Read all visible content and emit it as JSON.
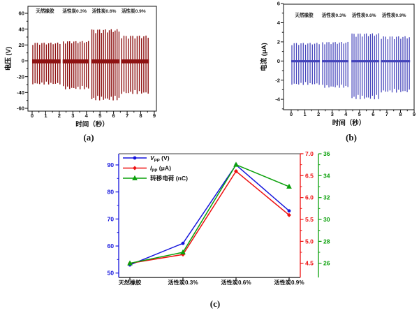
{
  "figure": {
    "background": "#ffffff",
    "captions": {
      "a": "(a)",
      "b": "(b)",
      "c": "(c)"
    }
  },
  "chart_data": [
    {
      "id": "a",
      "type": "line",
      "subtype": "spike-train",
      "title": "",
      "xlabel": "时间（秒）",
      "ylabel": "电压 (V)",
      "xlim": [
        -0.3,
        9.2
      ],
      "ylim": [
        -64,
        69
      ],
      "xticks": [
        0,
        1,
        2,
        3,
        4,
        5,
        6,
        7,
        8,
        9
      ],
      "yticks": [
        -60,
        -40,
        -20,
        0,
        20,
        40,
        60
      ],
      "y_minor": [
        -50,
        -30,
        -10,
        10,
        30,
        50
      ],
      "grid": false,
      "color": "#8e1212",
      "annotations": [
        "天然橡胶",
        "活性炭0.3%",
        "活性炭0.6%",
        "活性炭0.9%"
      ],
      "groups": [
        {
          "label": "天然橡胶",
          "t_start": 0.05,
          "t_end": 2.05,
          "spikes": 13,
          "peak_pos": 23,
          "peak_neg": -30
        },
        {
          "label": "活性炭0.3%",
          "t_start": 2.3,
          "t_end": 4.15,
          "spikes": 13,
          "peak_pos": 25,
          "peak_neg": -36
        },
        {
          "label": "活性炭0.6%",
          "t_start": 4.4,
          "t_end": 6.4,
          "spikes": 15,
          "peak_pos": 40,
          "peak_neg": -50
        },
        {
          "label": "活性炭0.9%",
          "t_start": 6.6,
          "t_end": 8.55,
          "spikes": 13,
          "peak_pos": 32,
          "peak_neg": -42
        }
      ]
    },
    {
      "id": "b",
      "type": "line",
      "subtype": "spike-train",
      "title": "",
      "xlabel": "时间（秒）",
      "ylabel": "电流 (μA)",
      "xlim": [
        -0.6,
        9.0
      ],
      "ylim": [
        -5.1,
        6.0
      ],
      "xticks": [
        0,
        1,
        2,
        3,
        4,
        5,
        6,
        7,
        8,
        9
      ],
      "yticks": [
        -4,
        -2,
        0,
        2,
        4,
        6
      ],
      "y_minor": [
        -5,
        -3,
        -1,
        1,
        3,
        5
      ],
      "grid": false,
      "color": "#4444bb",
      "annotations": [
        "天然橡胶",
        "活性炭0.3%",
        "活性炭0.6%",
        "活性炭0.9%"
      ],
      "groups": [
        {
          "label": "天然橡胶",
          "t_start": 0.05,
          "t_end": 2.05,
          "spikes": 13,
          "peak_pos": 1.9,
          "peak_neg": -2.5
        },
        {
          "label": "活性炭0.3%",
          "t_start": 2.3,
          "t_end": 4.15,
          "spikes": 13,
          "peak_pos": 2.0,
          "peak_neg": -2.8
        },
        {
          "label": "活性炭0.6%",
          "t_start": 4.45,
          "t_end": 6.4,
          "spikes": 14,
          "peak_pos": 2.9,
          "peak_neg": -4.0
        },
        {
          "label": "活性炭0.9%",
          "t_start": 6.6,
          "t_end": 8.65,
          "spikes": 14,
          "peak_pos": 2.6,
          "peak_neg": -3.3
        }
      ]
    },
    {
      "id": "c",
      "type": "line",
      "title": "",
      "categories": [
        "天然橡胶",
        "活性炭0.3%",
        "活性炭0.6%",
        "活性炭0.9%"
      ],
      "series": [
        {
          "name": "Vpp (V)",
          "axis": "left",
          "color": "#1414dc",
          "marker": "circle",
          "values": [
            53,
            61,
            90,
            73
          ]
        },
        {
          "name": "Ipp (μA)",
          "axis": "right",
          "color": "#ee1010",
          "marker": "diamond",
          "values": [
            4.5,
            4.7,
            6.6,
            5.6
          ]
        },
        {
          "name": "转移电荷 (nC)",
          "axis": "far_right",
          "color": "#0aa00a",
          "marker": "triangle",
          "values": [
            26,
            27,
            35,
            33
          ]
        }
      ],
      "axes": {
        "left": {
          "color": "#1414dc",
          "ticks": [
            "50",
            "60",
            "70",
            "80",
            "90"
          ],
          "tick_values": [
            50,
            60,
            70,
            80,
            90
          ],
          "minor": [
            55,
            65,
            75,
            85
          ],
          "range": [
            48.4,
            94.2
          ]
        },
        "right": {
          "color": "#ee1010",
          "ticks": [
            "4.5",
            "5.0",
            "5.5",
            "6.0",
            "6.5",
            "7.0"
          ],
          "tick_values": [
            4.5,
            5.0,
            5.5,
            6.0,
            6.5,
            7.0
          ],
          "minor": [
            4.75,
            5.25,
            5.75,
            6.25,
            6.75
          ],
          "range": [
            4.18,
            7.0
          ]
        },
        "far_right": {
          "color": "#0aa00a",
          "ticks": [
            "26",
            "28",
            "30",
            "32",
            "34",
            "36"
          ],
          "tick_values": [
            26,
            28,
            30,
            32,
            34,
            36
          ],
          "minor": [
            27,
            29,
            31,
            33,
            35
          ],
          "range": [
            24.7,
            36.0
          ]
        }
      },
      "legend": [
        {
          "sym": "V",
          "sub": "PP",
          "unit": "(V)",
          "italic": true,
          "color": "#1414dc",
          "marker": "circle"
        },
        {
          "sym": "I",
          "sub": "PP",
          "unit": "(μA)",
          "italic": true,
          "color": "#ee1010",
          "marker": "diamond"
        },
        {
          "sym": "转移电荷",
          "sub": "",
          "unit": "(nC)",
          "italic": false,
          "color": "#0aa00a",
          "marker": "triangle"
        }
      ],
      "legend_position": "top-left",
      "frame_colors": {
        "top": "#666666",
        "bottom": "#111111"
      }
    }
  ]
}
